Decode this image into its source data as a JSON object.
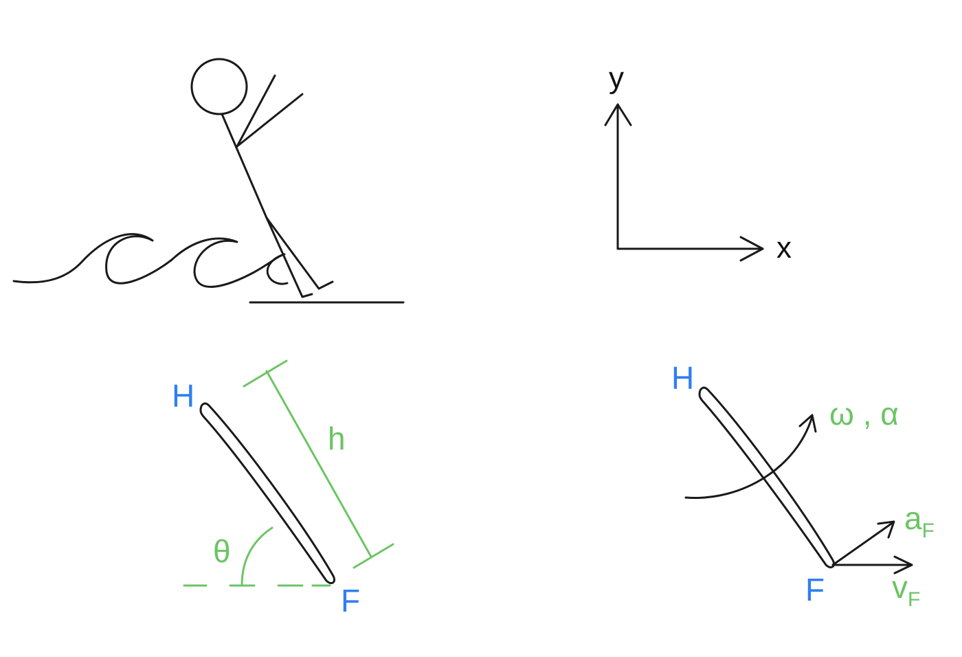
{
  "colors": {
    "ink": "#1a1a1a",
    "point_labels": "#2f7fef",
    "quantity_labels": "#6cc464"
  },
  "axes_panel": {
    "y_label": "y",
    "x_label": "x"
  },
  "geometry_panel": {
    "top_point": "H",
    "bottom_point": "F",
    "length_label": "h",
    "angle_label": "θ"
  },
  "kinematics_panel": {
    "top_point": "H",
    "bottom_point": "F",
    "rotation_label": "ω , α",
    "acceleration_symbol": "a",
    "acceleration_subscript": "F",
    "velocity_symbol": "v",
    "velocity_subscript": "F"
  }
}
